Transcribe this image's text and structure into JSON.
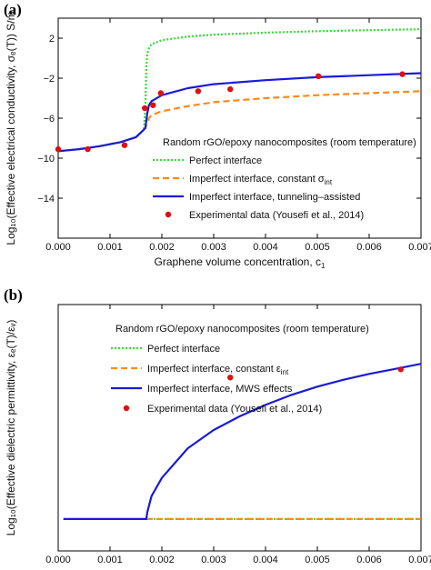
{
  "colors": {
    "perfect": "#33dd33",
    "constant": "#ff8a1c",
    "tunneling": "#1a1ad6",
    "experimental": "#dd1111",
    "axis": "#000000"
  },
  "chart_data": [
    {
      "panel_label": "(a)",
      "type": "line",
      "xlabel": "Graphene volume concentration, c",
      "xlabel_sub": "1",
      "ylabel": "Log₁₀(Effective electrical conductivity, σₑ(T)) S/m",
      "xlim": [
        0,
        0.007
      ],
      "ylim": [
        -18,
        4
      ],
      "x_ticks": [
        "0.000",
        "0.001",
        "0.002",
        "0.003",
        "0.004",
        "0.005",
        "0.006",
        "0.007"
      ],
      "y_ticks": [
        2,
        -2,
        -6,
        -10,
        -14
      ],
      "legend_title": "Random rGO/epoxy nanocomposites (room temperature)",
      "legend_placement": "lower-left",
      "legend": [
        {
          "label": "Perfect interface",
          "style": "dotted",
          "color_key": "perfect"
        },
        {
          "label": "Imperfect interface, constant σ",
          "sub": "int",
          "style": "dashed",
          "color_key": "constant"
        },
        {
          "label": "Imperfect interface, tunneling–assisted",
          "style": "solid",
          "color_key": "tunneling"
        },
        {
          "label": "Experimental data (Yousefi et al., 2014)",
          "style": "point",
          "color_key": "experimental"
        }
      ],
      "series": [
        {
          "name": "Perfect interface",
          "style": "dotted",
          "color_key": "perfect",
          "x": [
            0,
            0.0004,
            0.0008,
            0.0012,
            0.0015,
            0.00165,
            0.00168,
            0.0017,
            0.00172,
            0.00175,
            0.0018,
            0.002,
            0.0025,
            0.003,
            0.004,
            0.005,
            0.006,
            0.007
          ],
          "y": [
            -9.3,
            -9.1,
            -8.8,
            -8.4,
            -7.9,
            -7.2,
            -5.0,
            -1.0,
            0.5,
            1.0,
            1.4,
            1.8,
            2.15,
            2.35,
            2.55,
            2.7,
            2.8,
            2.9
          ]
        },
        {
          "name": "Imperfect interface, constant σ",
          "style": "dashed",
          "color_key": "constant",
          "x": [
            0,
            0.0004,
            0.0008,
            0.0012,
            0.0015,
            0.00168,
            0.00175,
            0.0018,
            0.002,
            0.0025,
            0.003,
            0.004,
            0.005,
            0.006,
            0.007
          ],
          "y": [
            -9.3,
            -9.1,
            -8.8,
            -8.4,
            -7.9,
            -7.0,
            -6.0,
            -5.7,
            -5.3,
            -4.8,
            -4.4,
            -4.0,
            -3.7,
            -3.5,
            -3.3
          ]
        },
        {
          "name": "Imperfect interface, tunneling–assisted",
          "style": "solid",
          "color_key": "tunneling",
          "x": [
            0,
            0.0004,
            0.0008,
            0.0012,
            0.0015,
            0.00168,
            0.00172,
            0.00175,
            0.0018,
            0.002,
            0.0025,
            0.003,
            0.004,
            0.005,
            0.006,
            0.007
          ],
          "y": [
            -9.3,
            -9.1,
            -8.8,
            -8.4,
            -7.9,
            -7.0,
            -5.5,
            -4.7,
            -4.3,
            -3.7,
            -3.0,
            -2.6,
            -2.2,
            -1.9,
            -1.7,
            -1.5
          ]
        },
        {
          "name": "Experimental data (Yousefi et al., 2014)",
          "style": "point",
          "color_key": "experimental",
          "x": [
            0.0,
            0.00057,
            0.00128,
            0.00167,
            0.00183,
            0.00198,
            0.0027,
            0.00332,
            0.00502,
            0.00664
          ],
          "y": [
            -9.1,
            -9.1,
            -8.7,
            -5.0,
            -4.7,
            -3.5,
            -3.3,
            -3.1,
            -1.8,
            -1.6
          ]
        }
      ]
    },
    {
      "panel_label": "(b)",
      "type": "line",
      "xlabel": "Graphene volume concentration, c",
      "xlabel_sub": "1",
      "ylabel": "Log₁₀(Effective dielectric permittivity, εₑ(T)/εᵥ)",
      "xlim": [
        0,
        0.007
      ],
      "ylim": [
        0.0,
        5.4
      ],
      "x_ticks": [
        "0.000",
        "0.001",
        "0.002",
        "0.003",
        "0.004",
        "0.005",
        "0.006",
        "0.007"
      ],
      "legend_title": "Random rGO/epoxy nanocomposites (room temperature)",
      "legend_placement": "top-left",
      "legend": [
        {
          "label": "Perfect interface",
          "style": "dotted",
          "color_key": "perfect"
        },
        {
          "label": "Imperfect interface, constant ε",
          "sub": "int",
          "style": "dashed",
          "color_key": "constant"
        },
        {
          "label": "Imperfect interface, MWS effects",
          "style": "solid",
          "color_key": "tunneling"
        },
        {
          "label": "Experimental data (Yousefi et al., 2014)",
          "style": "point",
          "color_key": "experimental"
        }
      ],
      "series": [
        {
          "name": "Perfect interface",
          "style": "dotted",
          "color_key": "perfect",
          "x": [
            0.0017,
            0.007
          ],
          "y": [
            0.7,
            0.7
          ]
        },
        {
          "name": "Imperfect interface, constant ε",
          "style": "dashed",
          "color_key": "constant",
          "x": [
            0.0017,
            0.007
          ],
          "y": [
            0.7,
            0.7
          ]
        },
        {
          "name": "Imperfect interface, MWS effects",
          "style": "solid",
          "color_key": "tunneling",
          "x": [
            0.0001,
            0.0017,
            0.00172,
            0.0018,
            0.002,
            0.0025,
            0.003,
            0.0035,
            0.004,
            0.0045,
            0.005,
            0.0055,
            0.006,
            0.0065,
            0.007
          ],
          "y": [
            0.7,
            0.7,
            0.85,
            1.2,
            1.6,
            2.25,
            2.65,
            2.95,
            3.2,
            3.42,
            3.6,
            3.75,
            3.88,
            3.99,
            4.1
          ]
        },
        {
          "name": "Experimental data (Yousefi et al., 2014)",
          "style": "point",
          "color_key": "experimental",
          "x": [
            0.00332,
            0.00661
          ],
          "y": [
            3.8,
            3.98
          ]
        }
      ]
    }
  ]
}
